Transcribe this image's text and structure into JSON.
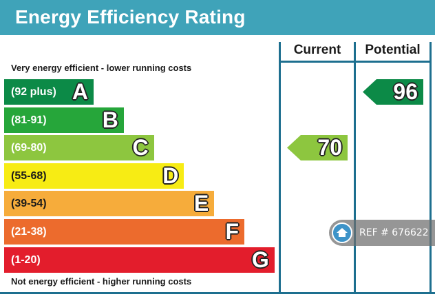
{
  "title": "Energy Efficiency Rating",
  "columns": {
    "current": "Current",
    "potential": "Potential"
  },
  "captions": {
    "top": "Very energy efficient - lower running costs",
    "bottom": "Not energy efficient - higher running costs"
  },
  "colors": {
    "header": "#3fa3b9",
    "frame": "#1d6f8f"
  },
  "chart_data": {
    "type": "bar",
    "title": "Energy Efficiency Rating",
    "bands": [
      {
        "range": "(92 plus)",
        "letter": "A",
        "min": 92,
        "max": 100,
        "color": "#0c8a47"
      },
      {
        "range": "(81-91)",
        "letter": "B",
        "min": 81,
        "max": 91,
        "color": "#26a63a"
      },
      {
        "range": "(69-80)",
        "letter": "C",
        "min": 69,
        "max": 80,
        "color": "#8dc63f"
      },
      {
        "range": "(55-68)",
        "letter": "D",
        "min": 55,
        "max": 68,
        "color": "#f7ec14"
      },
      {
        "range": "(39-54)",
        "letter": "E",
        "min": 39,
        "max": 54,
        "color": "#f6ac3b"
      },
      {
        "range": "(21-38)",
        "letter": "F",
        "min": 21,
        "max": 38,
        "color": "#ec6b2d"
      },
      {
        "range": "(1-20)",
        "letter": "G",
        "min": 1,
        "max": 20,
        "color": "#e31d2c"
      }
    ],
    "ratings": [
      {
        "column": "current",
        "value": 70,
        "band": "C",
        "color": "#8dc63f"
      },
      {
        "column": "potential",
        "value": 96,
        "band": "A",
        "color": "#0c8a47"
      }
    ]
  },
  "watermark": {
    "text": "REF # 676622",
    "icon": "home-icon"
  }
}
